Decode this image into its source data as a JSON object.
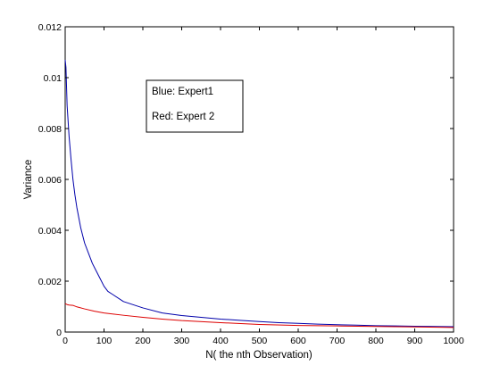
{
  "chart_data": {
    "type": "line",
    "title": "",
    "xlabel": "N( the nth Observation)",
    "ylabel": "Variance",
    "xlim": [
      0,
      1000
    ],
    "ylim": [
      0,
      0.012
    ],
    "xticks": [
      0,
      100,
      200,
      300,
      400,
      500,
      600,
      700,
      800,
      900,
      1000
    ],
    "xtick_labels": [
      "0",
      "100",
      "200",
      "300",
      "400",
      "500",
      "600",
      "700",
      "800",
      "900",
      "1000"
    ],
    "yticks": [
      0,
      0.002,
      0.004,
      0.006,
      0.008,
      0.01,
      0.012
    ],
    "ytick_labels": [
      "0",
      "0.002",
      "0.004",
      "0.006",
      "0.008",
      "0.01",
      "0.012"
    ],
    "grid": false,
    "legend": {
      "placement": "top-center",
      "entries": [
        "Blue: Expert1",
        "Red: Expert 2"
      ]
    },
    "series": [
      {
        "color": "#0000aa",
        "x": [
          0,
          2,
          5,
          10,
          15,
          20,
          25,
          30,
          35,
          40,
          45,
          50,
          60,
          70,
          80,
          90,
          100,
          110,
          120,
          150,
          200,
          250,
          300,
          350,
          400,
          450,
          500,
          550,
          600,
          650,
          700,
          750,
          800,
          850,
          900,
          950,
          1000
        ],
        "y": [
          0.0107,
          0.0104,
          0.0089,
          0.0077,
          0.0068,
          0.006,
          0.0054,
          0.0049,
          0.0045,
          0.0041,
          0.0038,
          0.0035,
          0.0031,
          0.0027,
          0.0024,
          0.0021,
          0.0018,
          0.0016,
          0.0015,
          0.0012,
          0.00095,
          0.00075,
          0.00065,
          0.00058,
          0.00051,
          0.00046,
          0.00041,
          0.00037,
          0.00034,
          0.00031,
          0.00029,
          0.00027,
          0.00025,
          0.00024,
          0.00023,
          0.00022,
          0.00021
        ]
      },
      {
        "color": "#dd0000",
        "x": [
          0,
          5,
          10,
          20,
          30,
          50,
          75,
          100,
          150,
          200,
          250,
          300,
          400,
          500,
          600,
          700,
          800,
          900,
          1000
        ],
        "y": [
          0.00112,
          0.00108,
          0.00106,
          0.00105,
          0.00099,
          0.00091,
          0.00082,
          0.00075,
          0.00066,
          0.00058,
          0.00051,
          0.00045,
          0.00037,
          0.0003,
          0.00026,
          0.00024,
          0.00022,
          0.0002,
          0.00018
        ]
      }
    ]
  }
}
